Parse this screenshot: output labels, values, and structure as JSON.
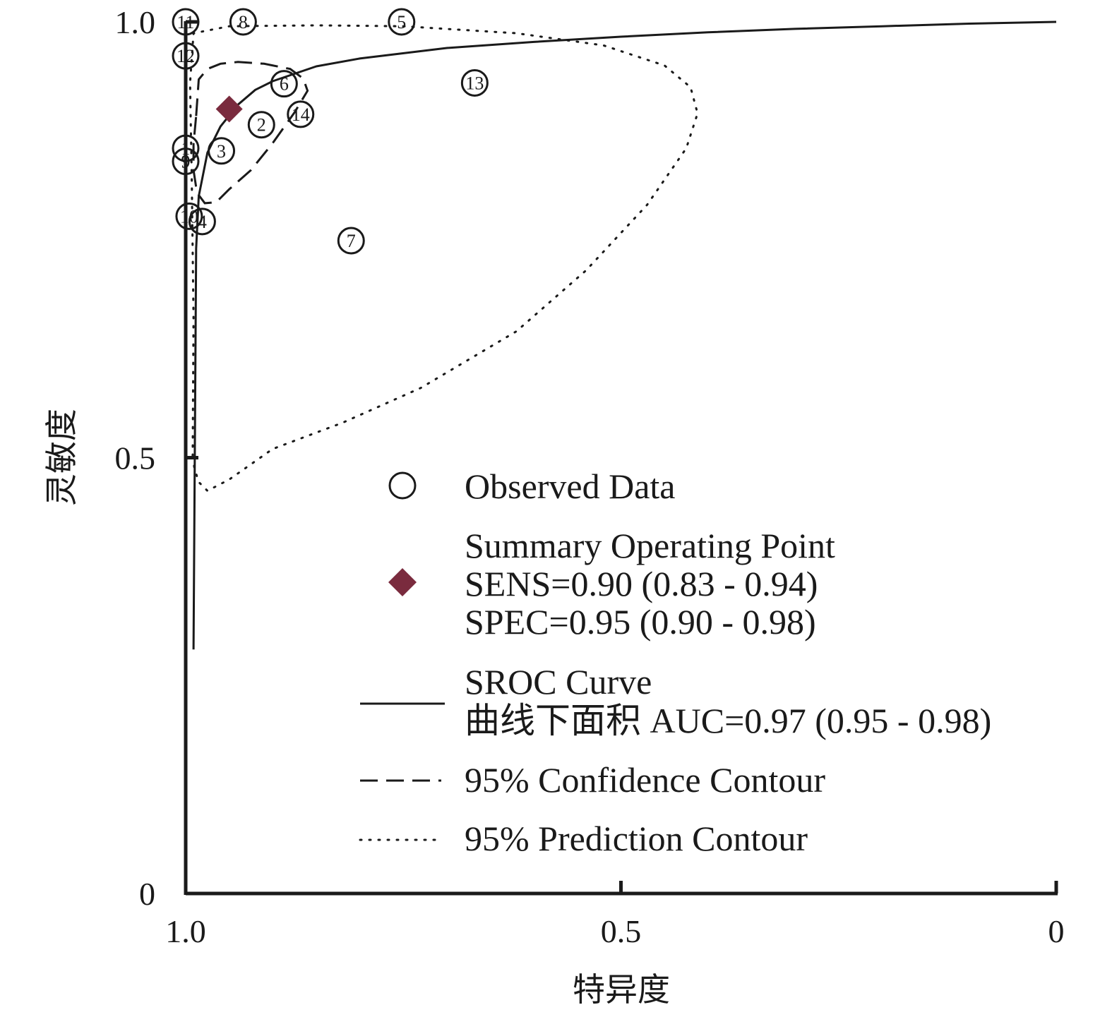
{
  "chart_data": {
    "type": "scatter",
    "xlabel": "特异度",
    "ylabel": "灵敏度",
    "x_axis_reversed": true,
    "xlim": [
      1.0,
      0
    ],
    "ylim": [
      0,
      1.0
    ],
    "x_ticks": [
      {
        "value": 1.0,
        "label": "1.0"
      },
      {
        "value": 0.5,
        "label": "0.5"
      },
      {
        "value": 0,
        "label": "0"
      }
    ],
    "y_ticks": [
      {
        "value": 1.0,
        "label": "1.0"
      },
      {
        "value": 0.5,
        "label": "0.5"
      },
      {
        "value": 0,
        "label": "0"
      }
    ],
    "grid": false,
    "legend_position": "lower-right",
    "studies": [
      {
        "id": "1",
        "specificity": 1.0,
        "sensitivity": 0.855
      },
      {
        "id": "2",
        "specificity": 0.913,
        "sensitivity": 0.882
      },
      {
        "id": "3",
        "specificity": 0.959,
        "sensitivity": 0.852
      },
      {
        "id": "4",
        "specificity": 0.981,
        "sensitivity": 0.771
      },
      {
        "id": "5",
        "specificity": 0.752,
        "sensitivity": 1.0
      },
      {
        "id": "6",
        "specificity": 0.887,
        "sensitivity": 0.929
      },
      {
        "id": "7",
        "specificity": 0.81,
        "sensitivity": 0.749
      },
      {
        "id": "8",
        "specificity": 0.934,
        "sensitivity": 1.0
      },
      {
        "id": "9",
        "specificity": 1.0,
        "sensitivity": 0.84
      },
      {
        "id": "10",
        "specificity": 0.996,
        "sensitivity": 0.777
      },
      {
        "id": "11",
        "specificity": 1.0,
        "sensitivity": 1.0
      },
      {
        "id": "12",
        "specificity": 1.0,
        "sensitivity": 0.961
      },
      {
        "id": "13",
        "specificity": 0.668,
        "sensitivity": 0.93
      },
      {
        "id": "14",
        "specificity": 0.868,
        "sensitivity": 0.894
      }
    ],
    "summary_point": {
      "specificity": 0.95,
      "sensitivity": 0.9
    },
    "sroc_curve": [
      [
        0.991,
        0.28
      ],
      [
        0.988,
        0.74
      ],
      [
        0.985,
        0.8
      ],
      [
        0.975,
        0.85
      ],
      [
        0.96,
        0.88
      ],
      [
        0.94,
        0.905
      ],
      [
        0.92,
        0.922
      ],
      [
        0.9,
        0.932
      ],
      [
        0.85,
        0.949
      ],
      [
        0.8,
        0.958
      ],
      [
        0.7,
        0.97
      ],
      [
        0.6,
        0.977
      ],
      [
        0.5,
        0.983
      ],
      [
        0.4,
        0.988
      ],
      [
        0.3,
        0.992
      ],
      [
        0.2,
        0.995
      ],
      [
        0.1,
        0.998
      ],
      [
        0.0,
        1.0
      ]
    ],
    "confidence_contour": [
      [
        0.988,
        0.892
      ],
      [
        0.985,
        0.934
      ],
      [
        0.975,
        0.946
      ],
      [
        0.96,
        0.952
      ],
      [
        0.94,
        0.954
      ],
      [
        0.91,
        0.952
      ],
      [
        0.88,
        0.946
      ],
      [
        0.865,
        0.935
      ],
      [
        0.86,
        0.921
      ],
      [
        0.875,
        0.896
      ],
      [
        0.9,
        0.861
      ],
      [
        0.925,
        0.83
      ],
      [
        0.95,
        0.808
      ],
      [
        0.965,
        0.793
      ],
      [
        0.978,
        0.792
      ],
      [
        0.987,
        0.804
      ],
      [
        0.991,
        0.83
      ],
      [
        0.991,
        0.86
      ],
      [
        0.988,
        0.892
      ]
    ],
    "prediction_contour": [
      [
        0.992,
        0.502
      ],
      [
        0.991,
        0.66
      ],
      [
        0.993,
        0.82
      ],
      [
        0.995,
        0.93
      ],
      [
        0.991,
        0.987
      ],
      [
        0.95,
        0.995
      ],
      [
        0.85,
        0.996
      ],
      [
        0.75,
        0.995
      ],
      [
        0.62,
        0.987
      ],
      [
        0.52,
        0.973
      ],
      [
        0.45,
        0.95
      ],
      [
        0.42,
        0.925
      ],
      [
        0.412,
        0.895
      ],
      [
        0.425,
        0.855
      ],
      [
        0.47,
        0.79
      ],
      [
        0.54,
        0.715
      ],
      [
        0.62,
        0.645
      ],
      [
        0.73,
        0.58
      ],
      [
        0.82,
        0.54
      ],
      [
        0.9,
        0.51
      ],
      [
        0.95,
        0.475
      ],
      [
        0.975,
        0.462
      ],
      [
        0.985,
        0.472
      ],
      [
        0.99,
        0.488
      ],
      [
        0.992,
        0.502
      ]
    ],
    "colors": {
      "summary_point": "#7a2b3e",
      "lines": "#1a1a1a"
    },
    "legend": {
      "observed": "Observed Data",
      "summary_title": "Summary Operating Point",
      "summary_sens": "SENS=0.90 (0.83 - 0.94)",
      "summary_spec": "SPEC=0.95 (0.90 - 0.98)",
      "sroc_title": "SROC Curve",
      "sroc_auc": "曲线下面积 AUC=0.97 (0.95 - 0.98)",
      "confidence": "95% Confidence Contour",
      "prediction": "95% Prediction Contour"
    }
  }
}
